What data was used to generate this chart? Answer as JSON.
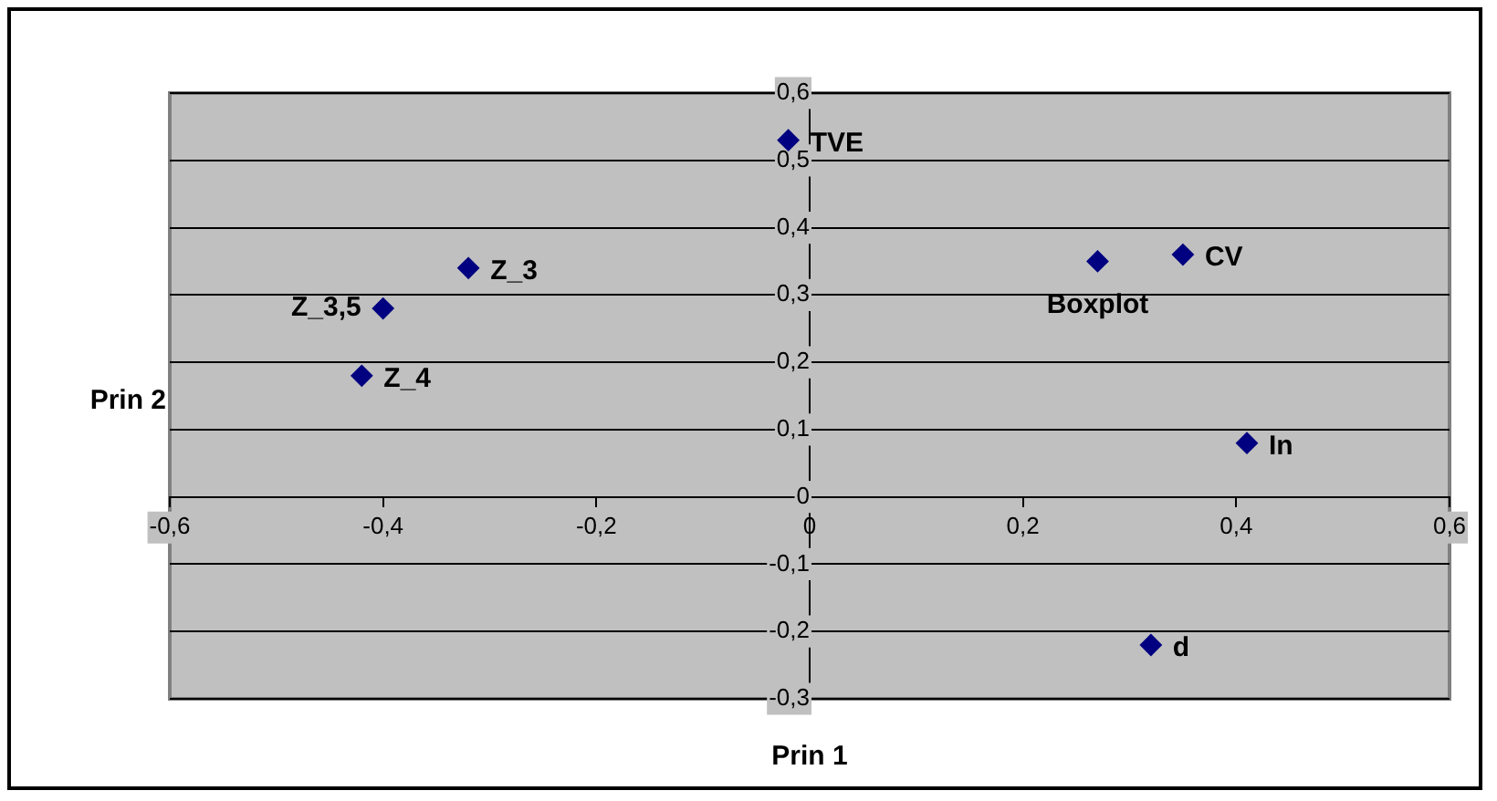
{
  "chart_data": {
    "type": "scatter",
    "xlabel": "Prin 1",
    "ylabel": "Prin 2",
    "x": [
      -0.02,
      -0.32,
      -0.4,
      -0.42,
      0.27,
      0.35,
      0.41,
      0.32
    ],
    "series": [
      {
        "color": "#000080",
        "values": [
          0.53,
          0.34,
          0.28,
          0.18,
          0.35,
          0.36,
          0.08,
          -0.22
        ]
      }
    ],
    "annotations": [
      {
        "text": "TVE",
        "x": -0.02,
        "y": 0.53
      },
      {
        "text": "Z_3",
        "x": -0.32,
        "y": 0.34
      },
      {
        "text": "Z_3,5",
        "x": -0.4,
        "y": 0.28
      },
      {
        "text": "Z_4",
        "x": -0.42,
        "y": 0.18
      },
      {
        "text": "Boxplot",
        "x": 0.27,
        "y": 0.35
      },
      {
        "text": "CV",
        "x": 0.35,
        "y": 0.36
      },
      {
        "text": "In",
        "x": 0.41,
        "y": 0.08
      },
      {
        "text": "d",
        "x": 0.32,
        "y": -0.22
      }
    ],
    "xlim": [
      -0.6,
      0.6
    ],
    "xticks": [
      {
        "value": -0.6,
        "label": "-0,6"
      },
      {
        "value": -0.4,
        "label": "-0,4"
      },
      {
        "value": -0.2,
        "label": "-0,2"
      },
      0,
      {
        "value": 0.2,
        "label": "0,2"
      },
      {
        "value": 0.4,
        "label": "0,4"
      },
      {
        "value": 0.6,
        "label": "0,6"
      }
    ],
    "ylim": [
      -0.3,
      0.6
    ],
    "yticks": [
      {
        "value": -0.3,
        "label": "-0,3"
      },
      {
        "value": -0.2,
        "label": "-0,2"
      },
      {
        "value": -0.1,
        "label": "-0,1"
      },
      0,
      {
        "value": 0.1,
        "label": "0,1"
      },
      {
        "value": 0.2,
        "label": "0,2"
      },
      {
        "value": 0.3,
        "label": "0,3"
      },
      {
        "value": 0.4,
        "label": "0,4"
      },
      {
        "value": 0.5,
        "label": "0,5"
      },
      {
        "value": 0.6,
        "label": "0,6"
      }
    ],
    "grid": "y",
    "marker": "diamond"
  }
}
